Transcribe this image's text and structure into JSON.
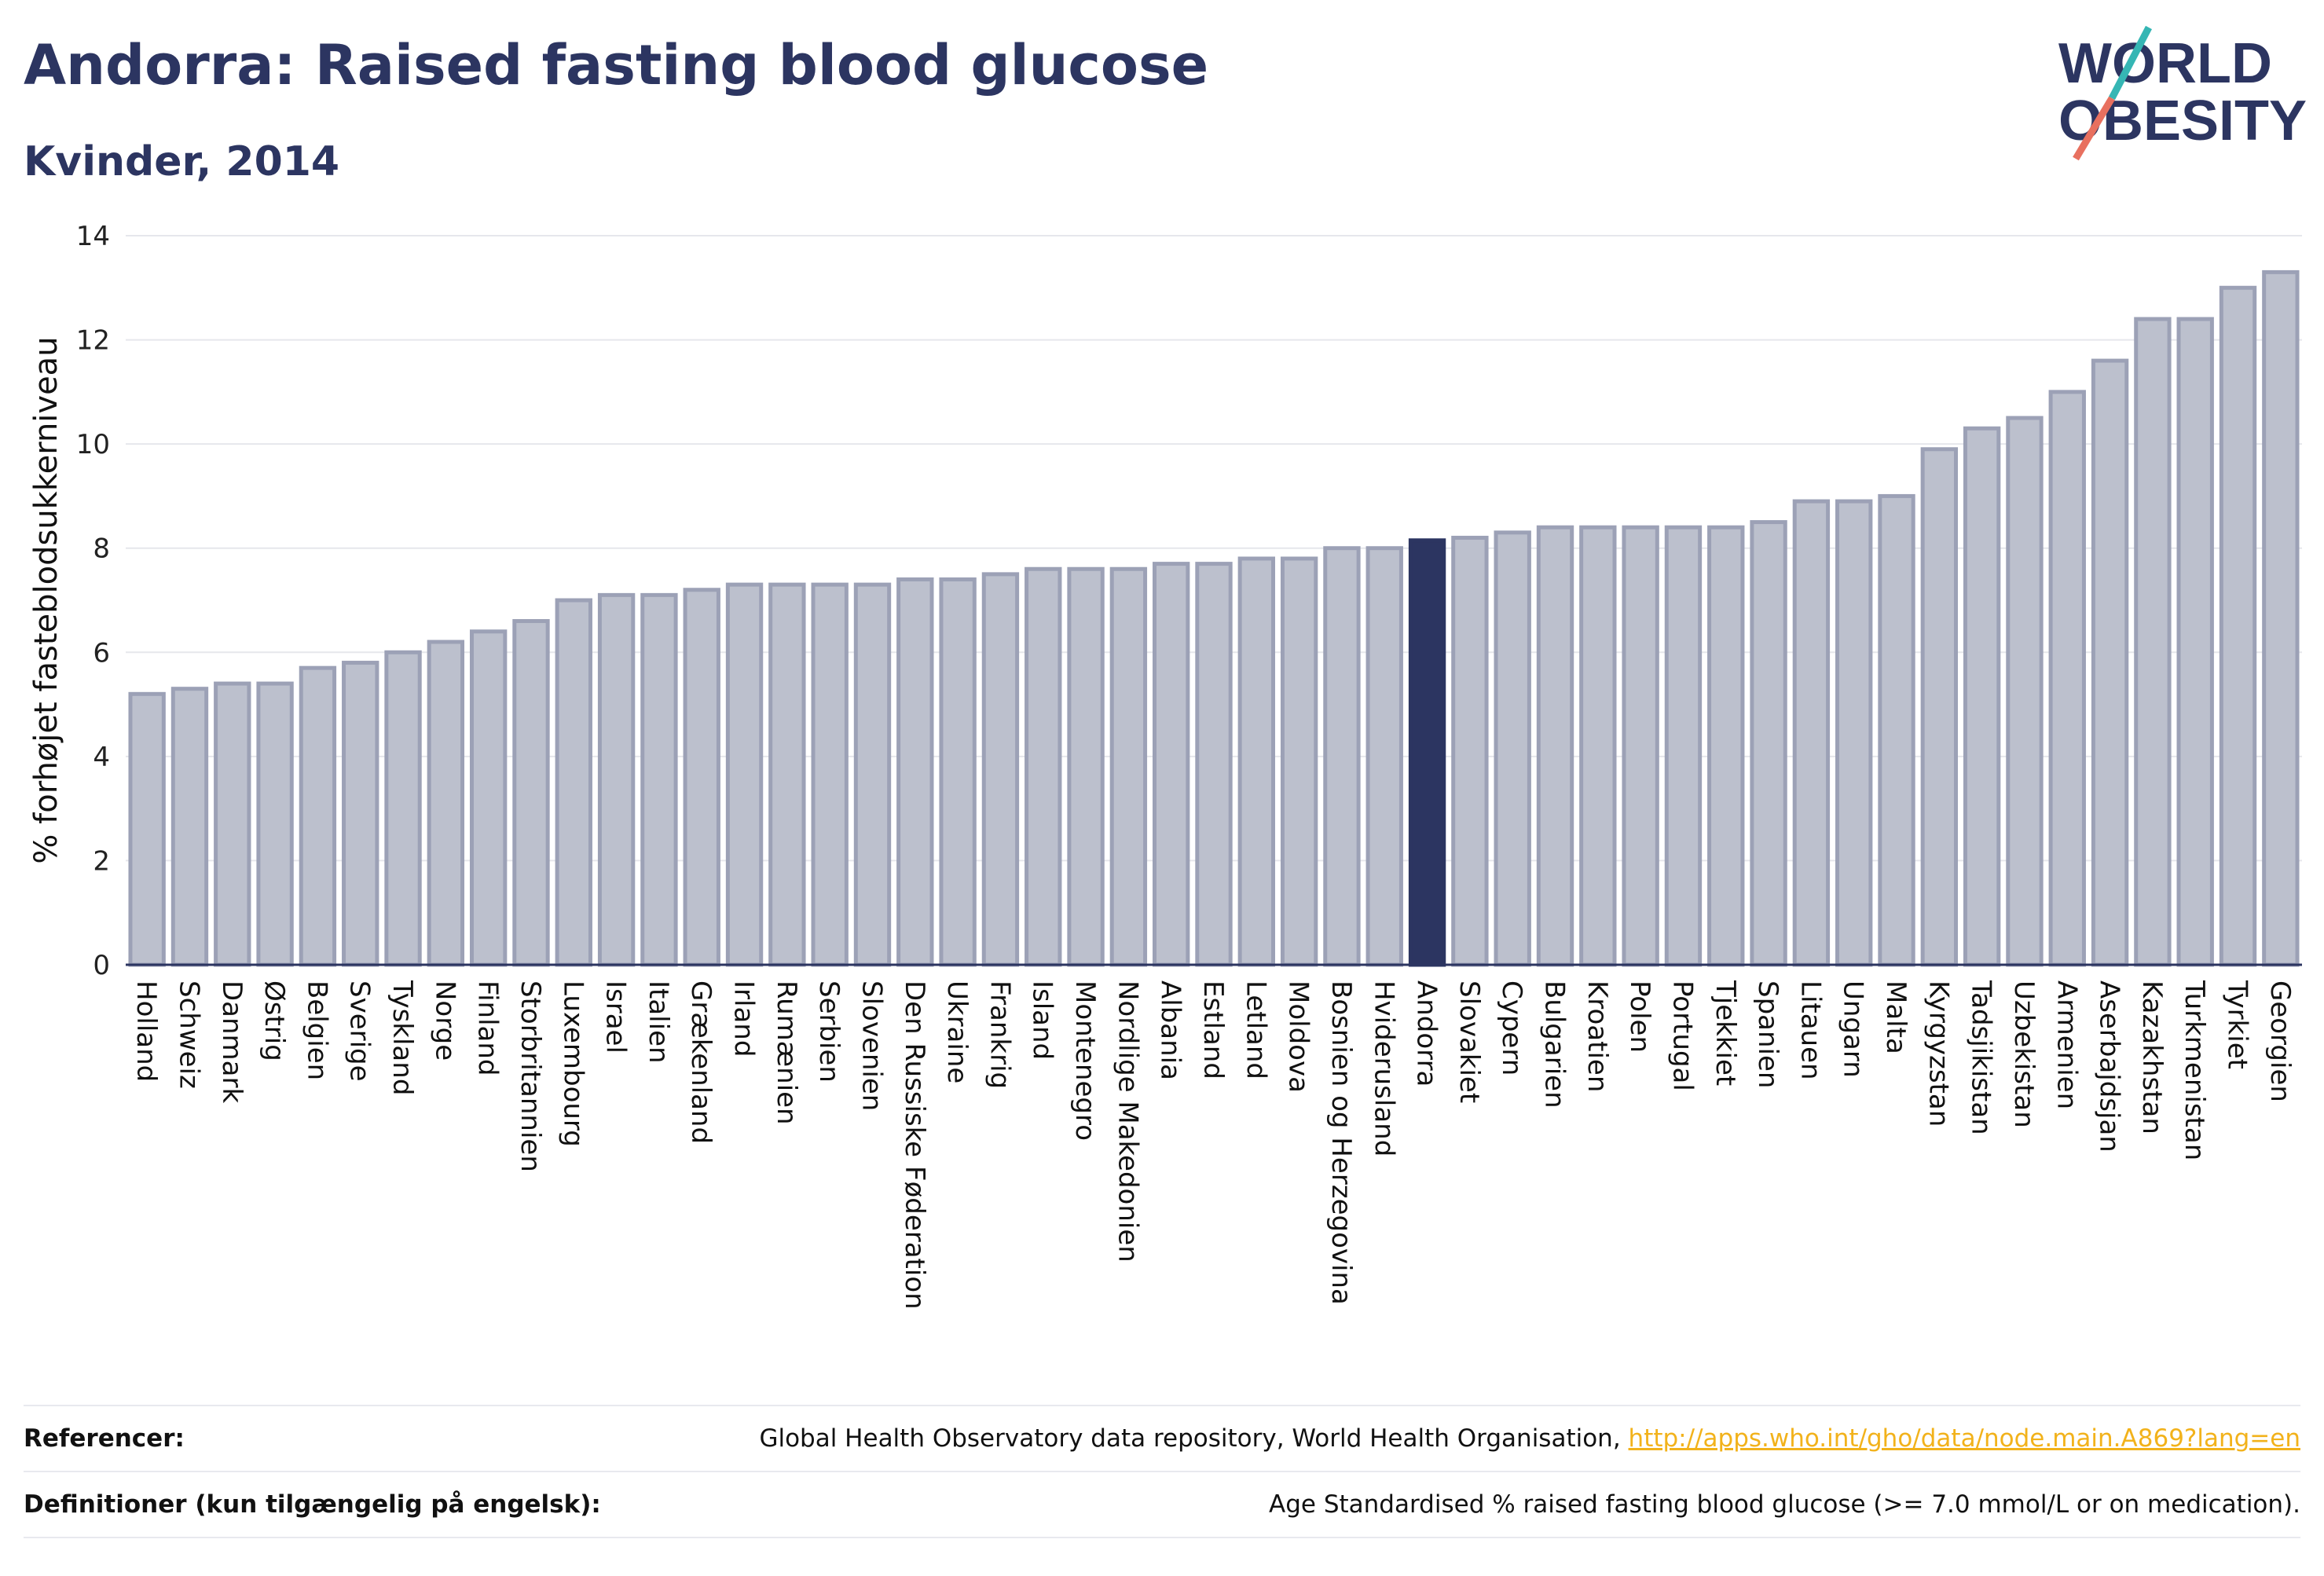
{
  "header": {
    "title": "Andorra: Raised fasting blood glucose",
    "subtitle": "Kvinder, 2014"
  },
  "logo": {
    "line1": "WORLD",
    "line2": "OBESITY",
    "accent_teal": "#35b6b4",
    "accent_coral": "#e8705f",
    "text_color": "#2c3561"
  },
  "colors": {
    "bar": "#bcc0cd",
    "bar_border": "#9ca1b6",
    "highlight": "#2c3561",
    "text": "#2c3561"
  },
  "chart_data": {
    "type": "bar",
    "title": "Andorra: Raised fasting blood glucose",
    "subtitle": "Kvinder, 2014",
    "xlabel": "",
    "ylabel": "% forhøjet fasteblodsukkerniveau",
    "ylim": [
      0,
      14
    ],
    "yticks": [
      0,
      2,
      4,
      6,
      8,
      10,
      12,
      14
    ],
    "grid": true,
    "highlight": "Andorra",
    "categories": [
      "Holland",
      "Schweiz",
      "Danmark",
      "Østrig",
      "Belgien",
      "Sverige",
      "Tyskland",
      "Norge",
      "Finland",
      "Storbritannien",
      "Luxembourg",
      "Israel",
      "Italien",
      "Grækenland",
      "Irland",
      "Rumænien",
      "Serbien",
      "Slovenien",
      "Den Russiske Føderation",
      "Ukraine",
      "Frankrig",
      "Island",
      "Montenegro",
      "Nordlige Makedonien",
      "Albania",
      "Estland",
      "Letland",
      "Moldova",
      "Bosnien og Herzegovina",
      "Hviderusland",
      "Andorra",
      "Slovakiet",
      "Cypern",
      "Bulgarien",
      "Kroatien",
      "Polen",
      "Portugal",
      "Tjekkiet",
      "Spanien",
      "Litauen",
      "Ungarn",
      "Malta",
      "Kyrgyzstan",
      "Tadsjikistan",
      "Uzbekistan",
      "Armenien",
      "Aserbajdsjan",
      "Kazakhstan",
      "Turkmenistan",
      "Tyrkiet",
      "Georgien"
    ],
    "values": [
      5.2,
      5.3,
      5.4,
      5.4,
      5.7,
      5.8,
      6.0,
      6.2,
      6.4,
      6.6,
      7.0,
      7.1,
      7.1,
      7.2,
      7.3,
      7.3,
      7.3,
      7.3,
      7.4,
      7.4,
      7.5,
      7.6,
      7.6,
      7.6,
      7.7,
      7.7,
      7.8,
      7.8,
      8.0,
      8.0,
      8.15,
      8.2,
      8.3,
      8.4,
      8.4,
      8.4,
      8.4,
      8.4,
      8.5,
      8.9,
      8.9,
      9.0,
      9.9,
      10.3,
      10.5,
      11.0,
      11.6,
      12.4,
      12.4,
      13.0,
      13.3
    ]
  },
  "footer": {
    "references_label": "Referencer:",
    "references_text": "Global Health Observatory data repository, World Health Organisation,",
    "references_link": "http://apps.who.int/gho/data/node.main.A869?lang=en",
    "definitions_label": "Definitioner (kun tilgængelig på engelsk):",
    "definitions_text": "Age Standardised % raised fasting blood glucose (>= 7.0 mmol/L or on medication)."
  }
}
